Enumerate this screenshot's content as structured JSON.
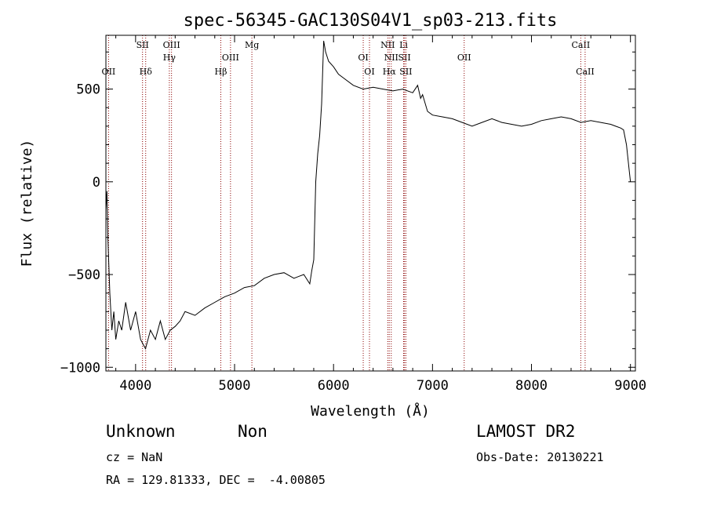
{
  "chart_data": {
    "type": "line",
    "title": "spec-56345-GAC130S04V1_sp03-213.fits",
    "xlabel": "Wavelength (Å)",
    "ylabel": "Flux (relative)",
    "xlim": [
      3700,
      9050
    ],
    "ylim": [
      -1020,
      790
    ],
    "xticks": [
      4000,
      5000,
      6000,
      7000,
      8000,
      9000
    ],
    "xtick_labels": [
      "4000",
      "5000",
      "6000",
      "7000",
      "8000",
      "9000"
    ],
    "yticks": [
      -1000,
      -500,
      0,
      500
    ],
    "ytick_labels": [
      "−1000",
      "−500",
      "0",
      "500"
    ],
    "grid": false,
    "line_color": "#000000",
    "marker_color": "#8b0000",
    "series": [
      {
        "x": [
          3700,
          3710,
          3720,
          3740,
          3760,
          3780,
          3800,
          3830,
          3860,
          3900,
          3950,
          4000,
          4050,
          4100,
          4150,
          4200,
          4250,
          4300,
          4350,
          4400,
          4450,
          4500,
          4600,
          4700,
          4800,
          4900,
          5000,
          5100,
          5200,
          5300,
          5400,
          5500,
          5600,
          5700,
          5760,
          5780,
          5800,
          5820,
          5840,
          5860,
          5880,
          5900,
          5920,
          5950,
          6000,
          6050,
          6100,
          6200,
          6300,
          6400,
          6500,
          6600,
          6700,
          6800,
          6850,
          6880,
          6900,
          6950,
          7000,
          7100,
          7200,
          7300,
          7400,
          7500,
          7600,
          7700,
          7800,
          7900,
          8000,
          8100,
          8200,
          8300,
          8400,
          8500,
          8600,
          8700,
          8800,
          8850,
          8900,
          8930,
          8960,
          8990,
          9000
        ],
        "y": [
          -150,
          -50,
          -300,
          -600,
          -800,
          -700,
          -850,
          -750,
          -800,
          -650,
          -800,
          -700,
          -850,
          -900,
          -800,
          -850,
          -750,
          -850,
          -800,
          -780,
          -750,
          -700,
          -720,
          -680,
          -650,
          -620,
          -600,
          -570,
          -560,
          -520,
          -500,
          -490,
          -520,
          -500,
          -550,
          -480,
          -420,
          0,
          150,
          250,
          420,
          760,
          700,
          650,
          620,
          580,
          560,
          520,
          500,
          510,
          500,
          490,
          500,
          480,
          520,
          450,
          470,
          380,
          360,
          350,
          340,
          320,
          300,
          320,
          340,
          320,
          310,
          300,
          310,
          330,
          340,
          350,
          340,
          320,
          330,
          320,
          310,
          300,
          290,
          280,
          200,
          50,
          0
        ]
      }
    ],
    "line_markers": [
      {
        "label": "OII",
        "x": 3727,
        "row": 2
      },
      {
        "label": "SII",
        "x": 4070,
        "row": 0
      },
      {
        "label": "Hδ",
        "x": 4102,
        "row": 2
      },
      {
        "label": "OIII",
        "x": 4363,
        "row": 0
      },
      {
        "label": "Hγ",
        "x": 4341,
        "row": 1
      },
      {
        "label": "Hβ",
        "x": 4861,
        "row": 2
      },
      {
        "label": "OIII",
        "x": 4959,
        "row": 1
      },
      {
        "label": "Mg",
        "x": 5175,
        "row": 0
      },
      {
        "label": "OI",
        "x": 6300,
        "row": 1
      },
      {
        "label": "OI",
        "x": 6363,
        "row": 2
      },
      {
        "label": "NII",
        "x": 6548,
        "row": 0
      },
      {
        "label": "Li",
        "x": 6708,
        "row": 0
      },
      {
        "label": "NII",
        "x": 6583,
        "row": 1
      },
      {
        "label": "SII",
        "x": 6717,
        "row": 1
      },
      {
        "label": "Hα",
        "x": 6563,
        "row": 2
      },
      {
        "label": "SII",
        "x": 6731,
        "row": 2
      },
      {
        "label": "OII",
        "x": 7320,
        "row": 1
      },
      {
        "label": "CaII",
        "x": 8498,
        "row": 0
      },
      {
        "label": "CaII",
        "x": 8542,
        "row": 2
      }
    ]
  },
  "info": {
    "class_label": "Unknown",
    "subclass_label": "Non",
    "survey_label": "LAMOST DR2",
    "cz_text": "cz = NaN",
    "obs_date_text": "Obs-Date: 20130221",
    "coords_text": "RA = 129.81333, DEC =  -4.00805"
  }
}
